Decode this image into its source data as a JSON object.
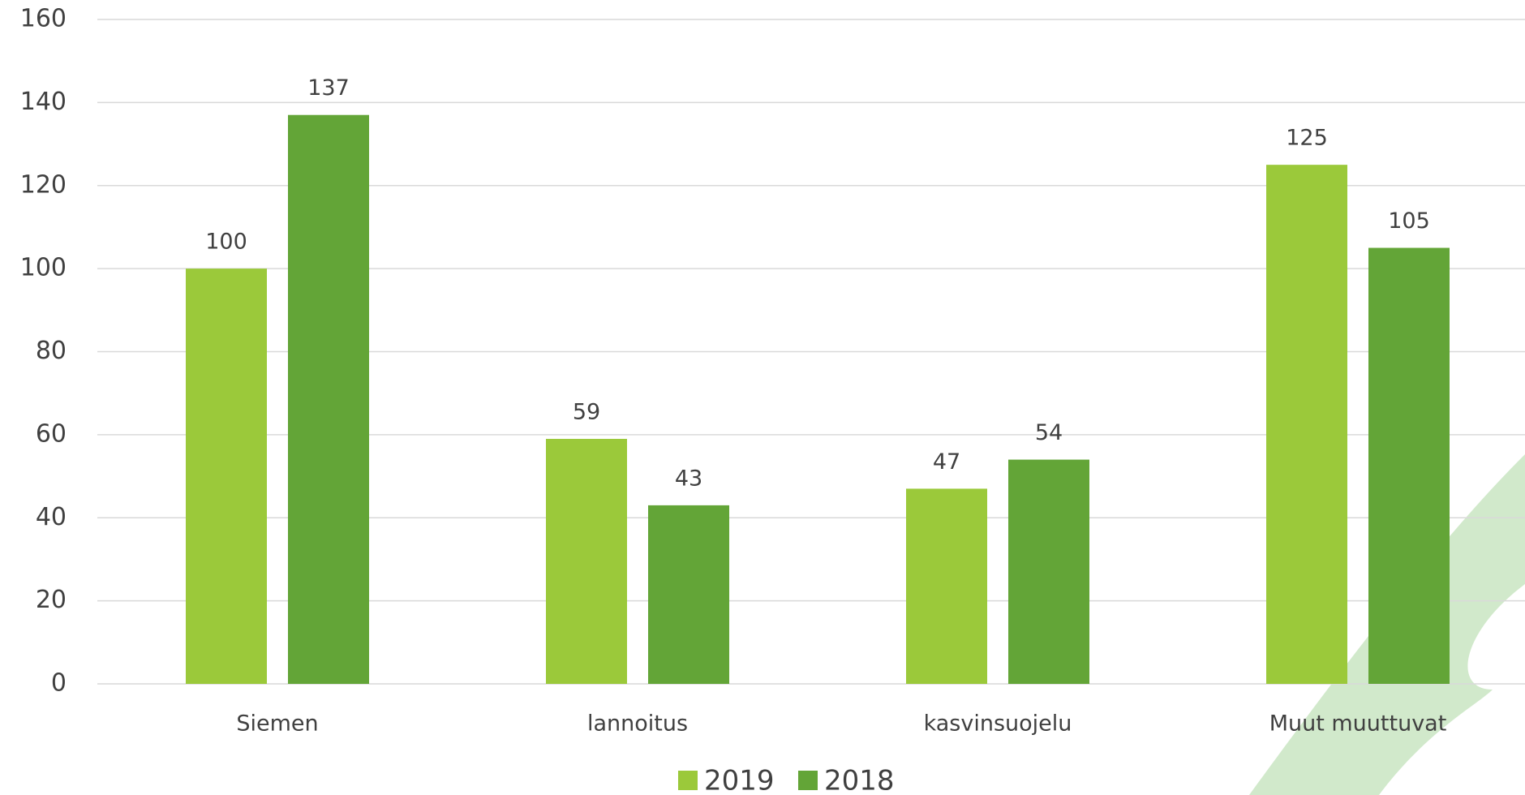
{
  "chart_data": {
    "type": "bar",
    "categories": [
      "Siemen",
      "lannoitus",
      "kasvinsuojelu",
      "Muut muuttuvat"
    ],
    "series": [
      {
        "name": "2019",
        "color": "#9bc93a",
        "values": [
          100,
          59,
          47,
          125
        ]
      },
      {
        "name": "2018",
        "color": "#63a537",
        "values": [
          137,
          43,
          54,
          105
        ]
      }
    ],
    "ylim": [
      0,
      160
    ],
    "yticks": [
      0,
      20,
      40,
      60,
      80,
      100,
      120,
      140,
      160
    ],
    "grid": true,
    "legend": "bottom"
  }
}
